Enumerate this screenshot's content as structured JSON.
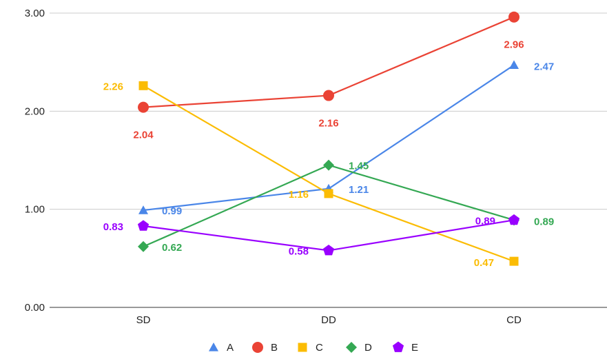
{
  "chart_data": {
    "type": "line",
    "title": "",
    "xlabel": "",
    "ylabel": "",
    "categories": [
      "SD",
      "DD",
      "CD"
    ],
    "ylim": [
      0,
      3
    ],
    "yticks": [
      "0.00",
      "1.00",
      "2.00",
      "3.00"
    ],
    "grid": true,
    "legend_position": "bottom",
    "series": [
      {
        "name": "A",
        "marker": "triangle",
        "color": "#4a86e8",
        "values": [
          0.99,
          1.21,
          2.47
        ],
        "labels": [
          "0.99",
          "1.21",
          "2.47"
        ]
      },
      {
        "name": "B",
        "marker": "circle",
        "color": "#ea4335",
        "values": [
          2.04,
          2.16,
          2.96
        ],
        "labels": [
          "2.04",
          "2.16",
          "2.96"
        ]
      },
      {
        "name": "C",
        "marker": "square",
        "color": "#fbbc04",
        "values": [
          2.26,
          1.16,
          0.47
        ],
        "labels": [
          "2.26",
          "1.16",
          "0.47"
        ]
      },
      {
        "name": "D",
        "marker": "diamond",
        "color": "#34a853",
        "values": [
          0.62,
          1.45,
          0.89
        ],
        "labels": [
          "0.62",
          "1.45",
          "0.89"
        ]
      },
      {
        "name": "E",
        "marker": "pentagon",
        "color": "#9900ff",
        "values": [
          0.83,
          0.58,
          0.89
        ],
        "labels": [
          "0.83",
          "0.58",
          "0.89"
        ]
      }
    ]
  }
}
